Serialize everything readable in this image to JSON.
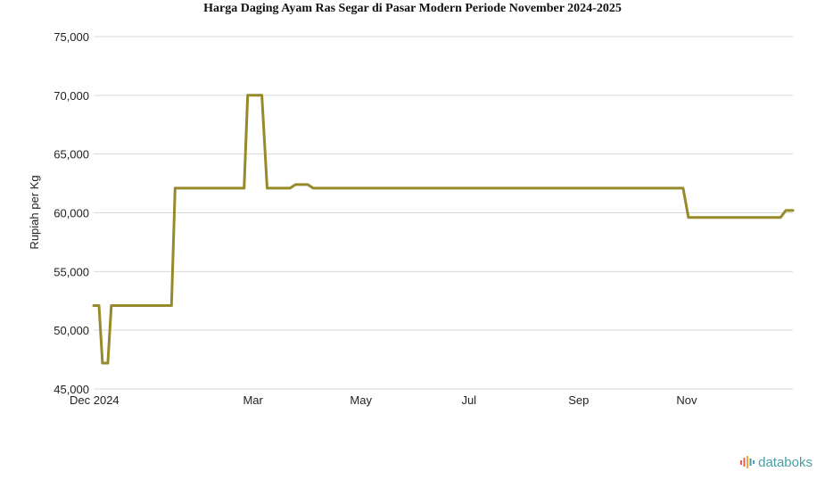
{
  "chart_data": {
    "type": "line",
    "title": "Harga Daging Ayam Ras Segar di Pasar Modern Periode November 2024-2025",
    "ylabel": "Rupiah per Kg",
    "ylim": [
      45000,
      75000
    ],
    "yticks": [
      45000,
      50000,
      55000,
      60000,
      65000,
      70000,
      75000
    ],
    "xlim": [
      "2024-12-01",
      "2025-12-31"
    ],
    "xticks": [
      {
        "date": "2024-12-01",
        "label": "Dec 2024"
      },
      {
        "date": "2025-03-01",
        "label": "Mar"
      },
      {
        "date": "2025-05-01",
        "label": "May"
      },
      {
        "date": "2025-07-01",
        "label": "Jul"
      },
      {
        "date": "2025-09-01",
        "label": "Sep"
      },
      {
        "date": "2025-11-01",
        "label": "Nov"
      }
    ],
    "grid": true,
    "series": [
      {
        "color": "#978a2b",
        "points": [
          {
            "x": "2024-12-01",
            "y": 52100
          },
          {
            "x": "2024-12-04",
            "y": 52100
          },
          {
            "x": "2024-12-06",
            "y": 47200
          },
          {
            "x": "2024-12-09",
            "y": 47200
          },
          {
            "x": "2024-12-11",
            "y": 52100
          },
          {
            "x": "2025-01-14",
            "y": 52100
          },
          {
            "x": "2025-01-16",
            "y": 62100
          },
          {
            "x": "2025-02-24",
            "y": 62100
          },
          {
            "x": "2025-02-26",
            "y": 70000
          },
          {
            "x": "2025-03-06",
            "y": 70000
          },
          {
            "x": "2025-03-09",
            "y": 62100
          },
          {
            "x": "2025-03-22",
            "y": 62100
          },
          {
            "x": "2025-03-25",
            "y": 62400
          },
          {
            "x": "2025-04-01",
            "y": 62400
          },
          {
            "x": "2025-04-04",
            "y": 62100
          },
          {
            "x": "2025-10-30",
            "y": 62100
          },
          {
            "x": "2025-11-02",
            "y": 59600
          },
          {
            "x": "2025-12-24",
            "y": 59600
          },
          {
            "x": "2025-12-27",
            "y": 60200
          },
          {
            "x": "2025-12-31",
            "y": 60200
          }
        ]
      }
    ]
  },
  "brand": {
    "name": "databoks",
    "colors": [
      "#e8604c",
      "#f2a33a",
      "#4aa0a8"
    ]
  }
}
